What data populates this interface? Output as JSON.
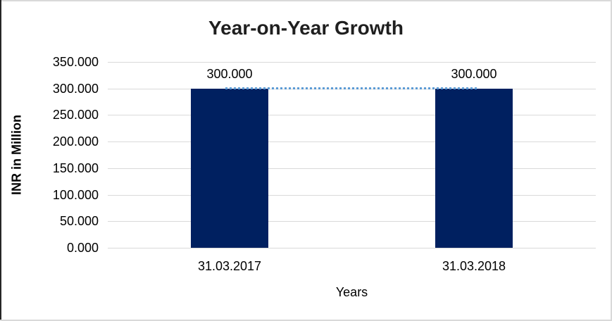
{
  "chart_data": {
    "type": "bar",
    "title": "Year-on-Year Growth",
    "xlabel": "Years",
    "ylabel": "INR in Million",
    "categories": [
      "31.03.2017",
      "31.03.2018"
    ],
    "series": [
      {
        "name": "INR in Million",
        "type": "column",
        "values": [
          300.0,
          300.0
        ],
        "data_labels": [
          "300.000",
          "300.000"
        ],
        "color": "#002060"
      },
      {
        "name": "trend-connector",
        "type": "line",
        "line_style": "dotted",
        "values": [
          300.0,
          300.0
        ],
        "color": "#5B9BD5"
      }
    ],
    "ylim": [
      0,
      350
    ],
    "ytick_labels": [
      "0.000",
      "50.000",
      "100.000",
      "150.000",
      "200.000",
      "250.000",
      "300.000",
      "350.000"
    ],
    "grid": true,
    "legend_position": "none",
    "colors": {
      "bar": "#002060",
      "trend_line": "#5B9BD5",
      "gridline": "#d9d9d9",
      "title_text": "#1f1f1f",
      "axis_text": "#000000",
      "frame_left_border": "#262626",
      "frame_border": "#d9d9d9"
    }
  }
}
